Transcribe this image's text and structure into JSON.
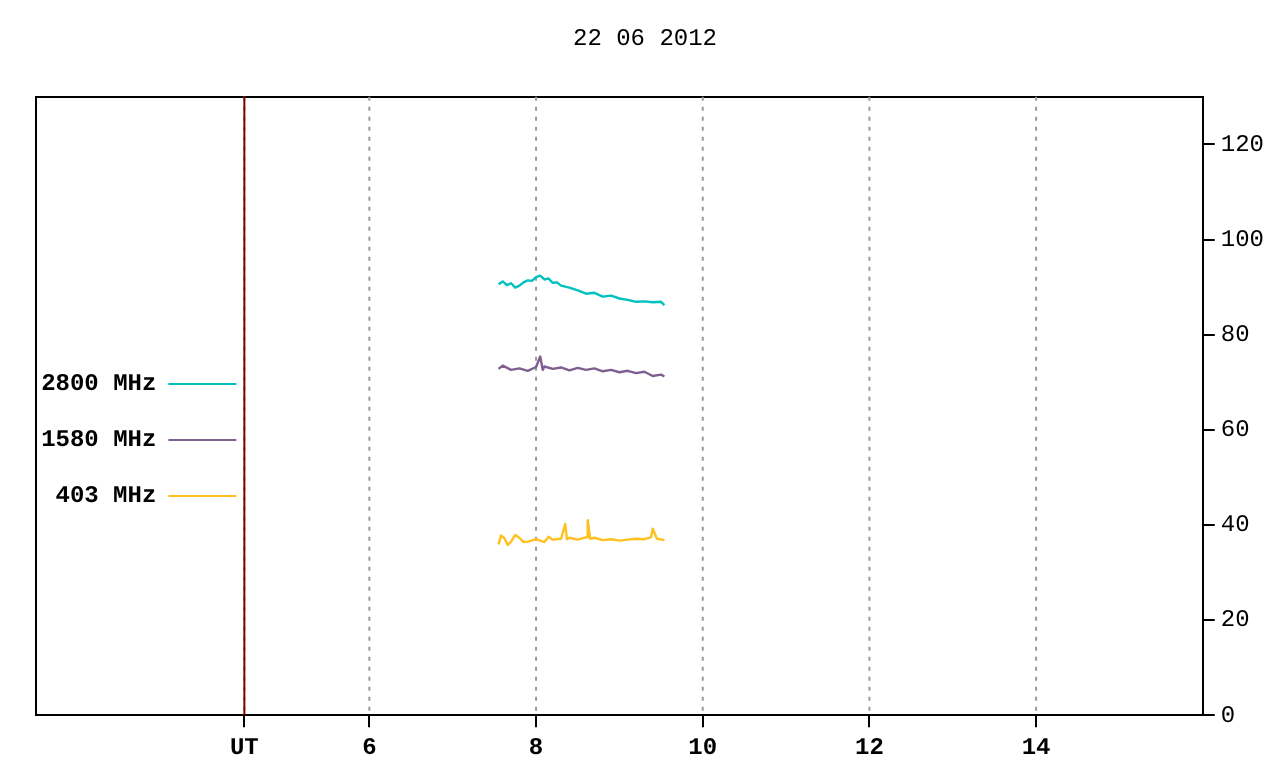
{
  "chart_data": {
    "type": "line",
    "title": "22 06 2012",
    "xlim": [
      2,
      16
    ],
    "xticks": [
      {
        "value": 4.5,
        "label": "UT"
      },
      6,
      8,
      10,
      12,
      14
    ],
    "ylim": [
      0,
      130
    ],
    "yticks": [
      0,
      20,
      40,
      60,
      80,
      100,
      120
    ],
    "grid": "x",
    "legend": "left",
    "marker": "none",
    "line_style": "solid",
    "ref_lines": [
      {
        "axis": "x",
        "value": 4.5,
        "label": null,
        "color": "#800000",
        "line_style": "solid"
      }
    ],
    "series": [
      {
        "name": "2800 MHz",
        "color": "#00c0c0",
        "x": [
          7.55,
          7.6,
          7.65,
          7.7,
          7.75,
          7.8,
          7.85,
          7.9,
          7.95,
          8.0,
          8.05,
          8.1,
          8.15,
          8.2,
          8.25,
          8.3,
          8.4,
          8.5,
          8.6,
          8.7,
          8.8,
          8.9,
          9.0,
          9.1,
          9.2,
          9.3,
          9.4,
          9.5,
          9.54
        ],
        "values": [
          90.6,
          91.2,
          90.4,
          90.8,
          89.9,
          90.3,
          91.0,
          91.4,
          91.3,
          92.1,
          92.4,
          91.6,
          91.8,
          90.9,
          91.0,
          90.3,
          89.9,
          89.3,
          88.6,
          88.8,
          88.0,
          88.2,
          87.6,
          87.3,
          86.9,
          87.0,
          86.8,
          86.9,
          86.2
        ]
      },
      {
        "name": "1580 MHz",
        "color": "#7f5f8f",
        "x": [
          7.55,
          7.6,
          7.7,
          7.8,
          7.9,
          8.0,
          8.05,
          8.08,
          8.1,
          8.2,
          8.3,
          8.4,
          8.5,
          8.6,
          8.7,
          8.8,
          8.9,
          9.0,
          9.1,
          9.2,
          9.3,
          9.4,
          9.5,
          9.54
        ],
        "values": [
          72.8,
          73.5,
          72.6,
          72.9,
          72.4,
          73.2,
          75.4,
          72.6,
          73.3,
          72.8,
          73.1,
          72.5,
          73.0,
          72.6,
          72.9,
          72.3,
          72.6,
          72.1,
          72.4,
          71.9,
          72.2,
          71.3,
          71.6,
          71.2
        ]
      },
      {
        "name": "403 MHz",
        "color": "#ffc020",
        "x": [
          7.55,
          7.58,
          7.62,
          7.66,
          7.7,
          7.75,
          7.8,
          7.85,
          7.9,
          8.0,
          8.1,
          8.15,
          8.2,
          8.3,
          8.35,
          8.37,
          8.4,
          8.5,
          8.6,
          8.62,
          8.65,
          8.7,
          8.8,
          8.9,
          9.0,
          9.1,
          9.2,
          9.3,
          9.38,
          9.4,
          9.45,
          9.54
        ],
        "values": [
          35.9,
          37.8,
          37.2,
          35.8,
          36.5,
          37.9,
          37.3,
          36.4,
          36.5,
          37.0,
          36.4,
          37.5,
          36.9,
          37.1,
          40.2,
          37.0,
          37.3,
          36.9,
          37.4,
          41.0,
          37.1,
          37.3,
          36.8,
          37.0,
          36.7,
          36.9,
          37.1,
          37.0,
          37.4,
          39.2,
          37.1,
          36.8
        ]
      }
    ]
  }
}
